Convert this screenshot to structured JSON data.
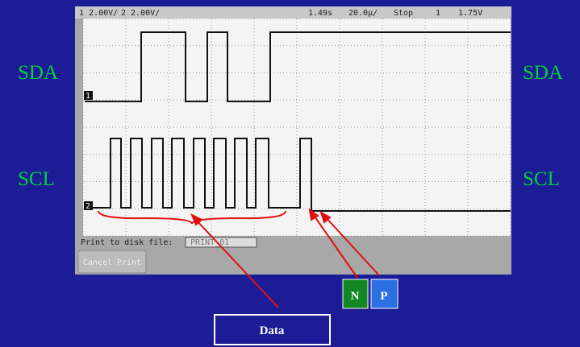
{
  "labels": {
    "sda_left": "SDA",
    "scl_left": "SCL",
    "sda_right": "SDA",
    "scl_right": "SCL"
  },
  "scope": {
    "ch1": "1 2.00V/",
    "ch2": "2 2.00V/",
    "trigger_level": "1.49s",
    "timebase": "20.0µ/",
    "status": "Stop",
    "trigger_source": "1",
    "trigger_voltage": "1.75V",
    "print_label": "Print to disk file:",
    "file_name": "PRINT_01",
    "cancel_button": "Cancel Print",
    "ch1_marker": "1",
    "ch2_marker": "2"
  },
  "callouts": {
    "n": "N",
    "p": "P",
    "data": "Data"
  }
}
